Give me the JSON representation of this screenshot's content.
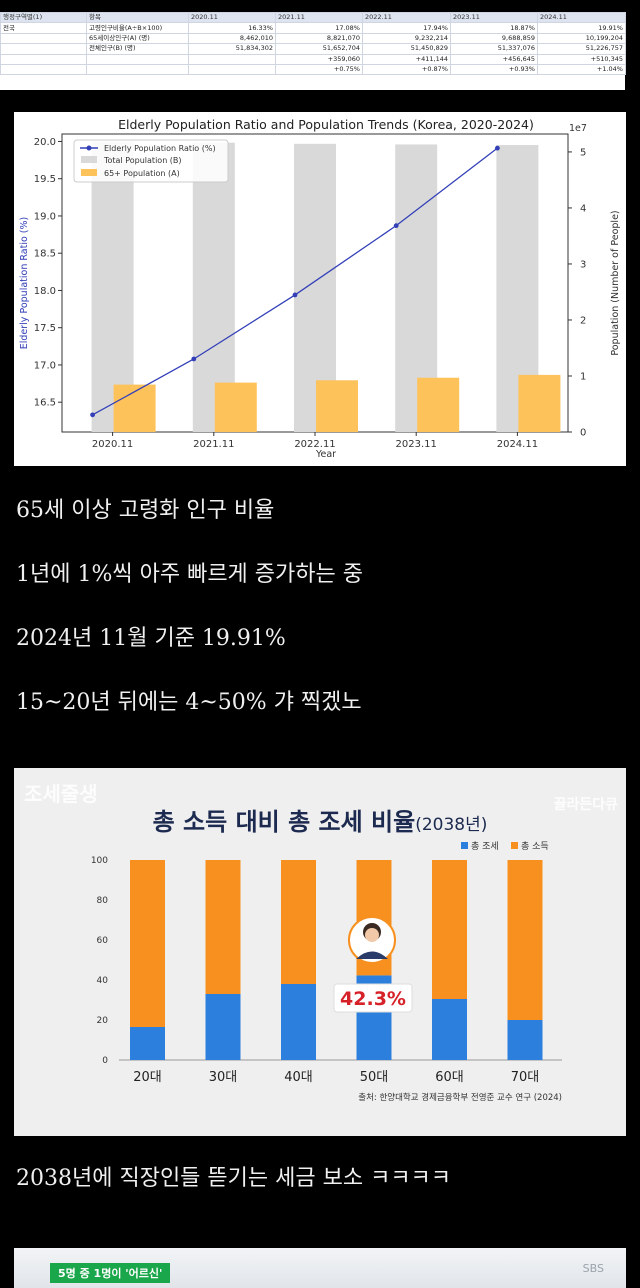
{
  "spreadsheet": {
    "headers": [
      "행정구역별(1)",
      "항목",
      "2020.11",
      "2021.11",
      "2022.11",
      "2023.11",
      "2024.11"
    ],
    "rows": [
      [
        "전국",
        "고령인구비율(A÷B×100)",
        "16.33%",
        "17.08%",
        "17.94%",
        "18.87%",
        "19.91%"
      ],
      [
        "",
        "65세이상인구(A) (명)",
        "8,462,010",
        "8,821,070",
        "9,232,214",
        "9,688,859",
        "10,199,204"
      ],
      [
        "",
        "전체인구(B) (명)",
        "51,834,302",
        "51,652,704",
        "51,450,829",
        "51,337,076",
        "51,226,757"
      ],
      [
        "",
        "",
        "",
        "+359,060",
        "+411,144",
        "+456,645",
        "+510,345"
      ],
      [
        "",
        "",
        "",
        "+0.75%",
        "+0.87%",
        "+0.93%",
        "+1.04%"
      ]
    ]
  },
  "chart1": {
    "chart_data": {
      "type": "bar",
      "title": "Elderly Population Ratio and Population Trends (Korea, 2020-2024)",
      "xlabel": "Year",
      "ylabel_left": "Elderly Population Ratio (%)",
      "ylabel_right": "Population (Number of People)",
      "right_axis_multiplier": "1e7",
      "categories": [
        "2020.11",
        "2021.11",
        "2022.11",
        "2023.11",
        "2024.11"
      ],
      "left_ylim": [
        16.1,
        20.1
      ],
      "left_ticks": [
        "16.5",
        "17.0",
        "17.5",
        "18.0",
        "18.5",
        "19.0",
        "19.5",
        "20.0"
      ],
      "right_ylim": [
        0,
        5.32
      ],
      "right_ticks": [
        "0",
        "1",
        "2",
        "3",
        "4",
        "5"
      ],
      "series": [
        {
          "name": "Elderly Population Ratio (%)",
          "kind": "line",
          "axis": "left",
          "color": "#3340b8",
          "values": [
            16.33,
            17.08,
            17.94,
            18.87,
            19.91
          ]
        },
        {
          "name": "Total Population (B)",
          "kind": "bar",
          "axis": "right",
          "color": "#d9d9d9",
          "values": [
            5.1834302,
            5.1652704,
            5.1450829,
            5.1337076,
            5.1226757
          ]
        },
        {
          "name": "65+ Population (A)",
          "kind": "bar",
          "axis": "right",
          "color": "#fdc25a",
          "values": [
            0.846201,
            0.882107,
            0.9232214,
            0.9688859,
            1.0199204
          ]
        }
      ],
      "legend": "top-left"
    }
  },
  "captions": [
    "65세 이상 고령화 인구 비율",
    "1년에 1%씩 아주 빠르게 증가하는 중",
    "2024년 11월 기준 19.91%",
    "15~20년 뒤에는 4~50% 갸 찍겠노",
    "2038년에 직장인들 뜯기는 세금 보소 ㅋㅋㅋㅋ"
  ],
  "chart2": {
    "title_main": "총 소득 대비 총 조세 비율",
    "title_sub": "(2038년)",
    "watermark_left": "조세줄생",
    "watermark_right": "끌라든다큐",
    "highlight_label": "42.3%",
    "source": "출처: 한양대학교 경제금융학부 전영준 교수 연구 (2024)",
    "chart_data": {
      "type": "bar",
      "stacked": true,
      "categories": [
        "20대",
        "30대",
        "40대",
        "50대",
        "60대",
        "70대"
      ],
      "ylim": [
        0,
        100
      ],
      "ticks": [
        "0",
        "20",
        "40",
        "60",
        "80",
        "100"
      ],
      "series": [
        {
          "name": "총 조세",
          "color": "#2c7fdc",
          "values": [
            16.5,
            33.0,
            38.0,
            42.3,
            30.5,
            20.0
          ]
        },
        {
          "name": "총 소득",
          "color": "#f7901e",
          "values": [
            83.5,
            67.0,
            62.0,
            57.7,
            69.5,
            80.0
          ]
        }
      ],
      "legend": "top-right"
    }
  },
  "bottom": {
    "tag": "5명 중 1명이 '어르신'",
    "logo": "SBS"
  }
}
